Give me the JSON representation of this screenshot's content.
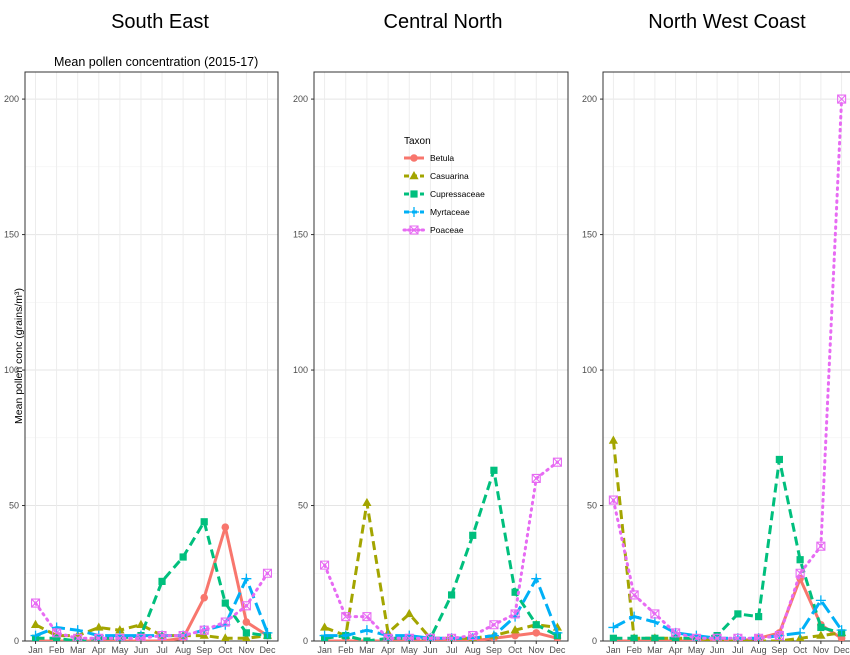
{
  "chart_data": {
    "type": "line",
    "subtitle": "Mean pollen concentration (2015-17)",
    "ylabel": "Mean pollen conc (grains/m³)",
    "ylim": [
      0,
      210
    ],
    "yticks": [
      0,
      50,
      100,
      150,
      200
    ],
    "categories": [
      "Jan",
      "Feb",
      "Mar",
      "Apr",
      "May",
      "Jun",
      "Jul",
      "Aug",
      "Sep",
      "Oct",
      "Nov",
      "Dec"
    ],
    "legend": {
      "title": "Taxon",
      "placement": "inside central panel, upper left",
      "entries": [
        "Betula",
        "Casuarina",
        "Cupressaceae",
        "Myrtaceae",
        "Poaceae"
      ]
    },
    "grid": true,
    "series_style": {
      "Betula": {
        "color": "#F8766D",
        "dash": "solid",
        "marker": "circle"
      },
      "Casuarina": {
        "color": "#A3A500",
        "dash": "dashed",
        "marker": "triangle"
      },
      "Cupressaceae": {
        "color": "#00BF7D",
        "dash": "dashed",
        "marker": "square"
      },
      "Myrtaceae": {
        "color": "#00B0F6",
        "dash": "longdash",
        "marker": "cross"
      },
      "Poaceae": {
        "color": "#E76BF3",
        "dash": "dotted",
        "marker": "boxcross"
      }
    },
    "panels": [
      {
        "title": "South East",
        "series": [
          {
            "name": "Betula",
            "values": [
              0,
              0,
              0,
              0,
              0,
              0,
              0,
              1,
              16,
              42,
              7,
              2
            ]
          },
          {
            "name": "Casuarina",
            "values": [
              6,
              2,
              2,
              5,
              4,
              6,
              2,
              2,
              2,
              1,
              1,
              2
            ]
          },
          {
            "name": "Cupressaceae",
            "values": [
              1,
              1,
              0,
              1,
              1,
              2,
              22,
              31,
              44,
              14,
              3,
              2
            ]
          },
          {
            "name": "Myrtaceae",
            "values": [
              2,
              5,
              4,
              2,
              2,
              2,
              2,
              2,
              4,
              6,
              23,
              3
            ]
          },
          {
            "name": "Poaceae",
            "values": [
              14,
              3,
              1,
              1,
              1,
              1,
              2,
              2,
              4,
              7,
              13,
              25
            ]
          }
        ]
      },
      {
        "title": "Central North",
        "series": [
          {
            "name": "Betula",
            "values": [
              0,
              0,
              0,
              0,
              0,
              0,
              0,
              0,
              1,
              2,
              3,
              1
            ]
          },
          {
            "name": "Casuarina",
            "values": [
              5,
              2,
              51,
              3,
              10,
              1,
              1,
              1,
              2,
              4,
              6,
              5
            ]
          },
          {
            "name": "Cupressaceae",
            "values": [
              1,
              2,
              0,
              1,
              1,
              1,
              17,
              39,
              63,
              18,
              6,
              2
            ]
          },
          {
            "name": "Myrtaceae",
            "values": [
              2,
              2,
              4,
              2,
              2,
              1,
              1,
              1,
              2,
              9,
              23,
              3
            ]
          },
          {
            "name": "Poaceae",
            "values": [
              28,
              9,
              9,
              1,
              1,
              1,
              1,
              2,
              6,
              10,
              60,
              66
            ]
          }
        ]
      },
      {
        "title": "North West Coast",
        "series": [
          {
            "name": "Betula",
            "values": [
              0,
              0,
              0,
              0,
              0,
              0,
              0,
              1,
              3,
              23,
              6,
              1
            ]
          },
          {
            "name": "Casuarina",
            "values": [
              74,
              1,
              1,
              1,
              1,
              0,
              0,
              0,
              0,
              1,
              2,
              3
            ]
          },
          {
            "name": "Cupressaceae",
            "values": [
              1,
              1,
              1,
              1,
              1,
              2,
              10,
              9,
              67,
              30,
              5,
              3
            ]
          },
          {
            "name": "Myrtaceae",
            "values": [
              5,
              9,
              7,
              3,
              2,
              1,
              1,
              1,
              2,
              3,
              15,
              4
            ]
          },
          {
            "name": "Poaceae",
            "values": [
              52,
              17,
              10,
              3,
              1,
              1,
              1,
              1,
              2,
              25,
              35,
              200
            ]
          }
        ]
      }
    ]
  }
}
